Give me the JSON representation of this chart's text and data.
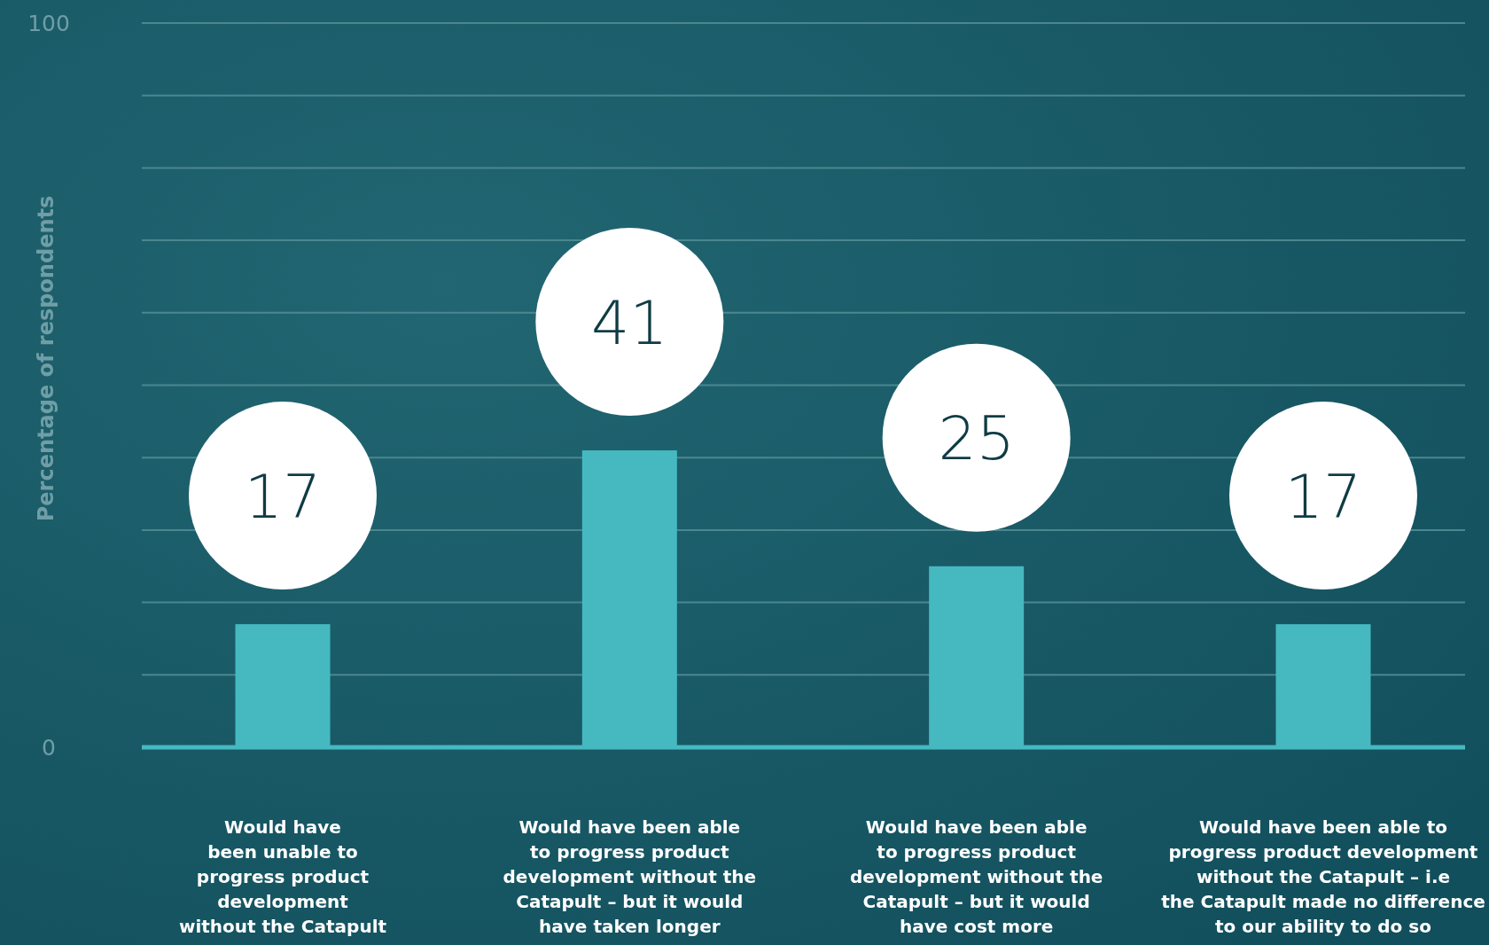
{
  "chart_data": {
    "type": "bar",
    "ylabel": "Percentage of respondents",
    "categories": [
      "Would have\nbeen unable to\nprogress product\ndevelopment\nwithout the Catapult",
      "Would have been able\nto progress product\ndevelopment without the\nCatapult – but it would\nhave taken longer",
      "Would have been able\nto progress product\ndevelopment without the\nCatapult – but it would\nhave cost more",
      "Would have been able to\nprogress product development\nwithout the Catapult – i.e\nthe Catapult made no difference\nto our ability to do so"
    ],
    "values": [
      17,
      41,
      25,
      17
    ],
    "color": "#46b9c0",
    "data_labels": true,
    "ylim": [
      0,
      100
    ],
    "yticks": [
      0,
      {
        "value": 10,
        "label": null
      },
      {
        "value": 20,
        "label": null
      },
      {
        "value": 30,
        "label": null
      },
      {
        "value": 40,
        "label": null
      },
      {
        "value": 50,
        "label": null
      },
      {
        "value": 60,
        "label": null
      },
      {
        "value": 70,
        "label": null
      },
      {
        "value": 80,
        "label": null
      },
      {
        "value": 90,
        "label": null
      },
      100
    ],
    "grid": "y"
  }
}
